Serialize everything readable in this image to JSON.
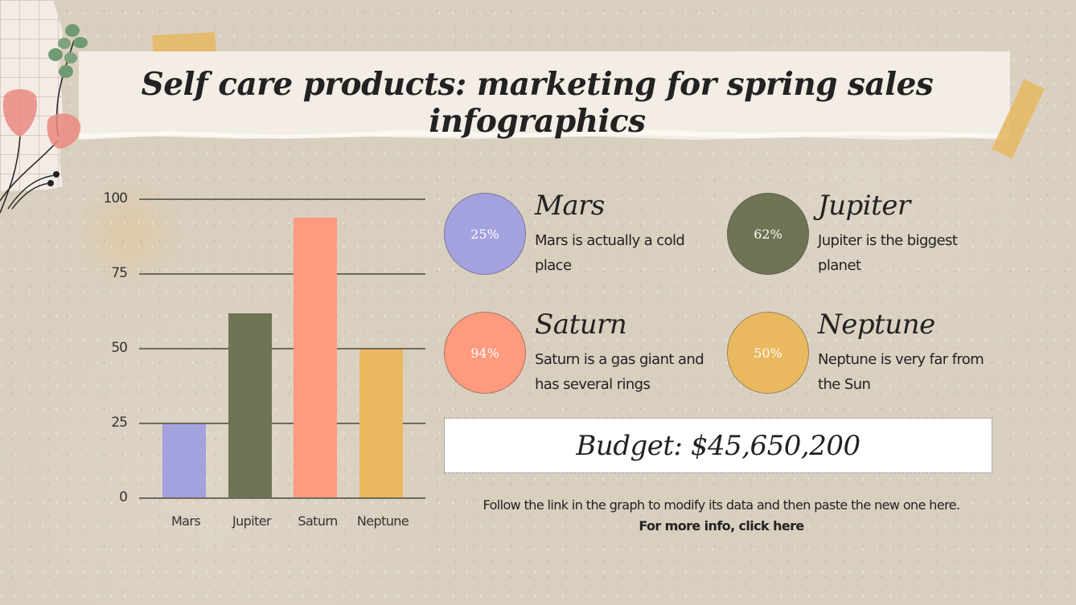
{
  "page": {
    "title": "Self care products: marketing for spring sales infographics"
  },
  "chart_data": {
    "type": "bar",
    "title": "",
    "xlabel": "",
    "ylabel": "",
    "categories": [
      "Mars",
      "Jupiter",
      "Saturn",
      "Neptune"
    ],
    "values": [
      25,
      62,
      94,
      50
    ],
    "colors": [
      "#a3a1de",
      "#6e7454",
      "#ff9a7e",
      "#e9b85f"
    ],
    "yticks": [
      0,
      25,
      50,
      75,
      100
    ],
    "ylim": [
      0,
      100
    ],
    "grid": true,
    "legend": null
  },
  "chart": {
    "yticks": [
      "100",
      "75",
      "50",
      "25",
      "0"
    ],
    "categories": [
      "Mars",
      "Jupiter",
      "Saturn",
      "Neptune"
    ]
  },
  "cards": [
    {
      "name": "Mars",
      "percent": "25%",
      "description": "Mars is actually a cold place",
      "color": "#a3a1de"
    },
    {
      "name": "Jupiter",
      "percent": "62%",
      "description": "Jupiter is the biggest planet",
      "color": "#6e7454"
    },
    {
      "name": "Saturn",
      "percent": "94%",
      "description": "Saturn is a gas giant and has several rings",
      "color": "#ff9a7e"
    },
    {
      "name": "Neptune",
      "percent": "50%",
      "description": "Neptune is very far from the Sun",
      "color": "#e9b85f"
    }
  ],
  "budget": {
    "label": "Budget: $45,650,200"
  },
  "footnote": {
    "text": "Follow the link in the graph to modify its data and then paste the new one here.",
    "link_label": "For more info, click here"
  }
}
